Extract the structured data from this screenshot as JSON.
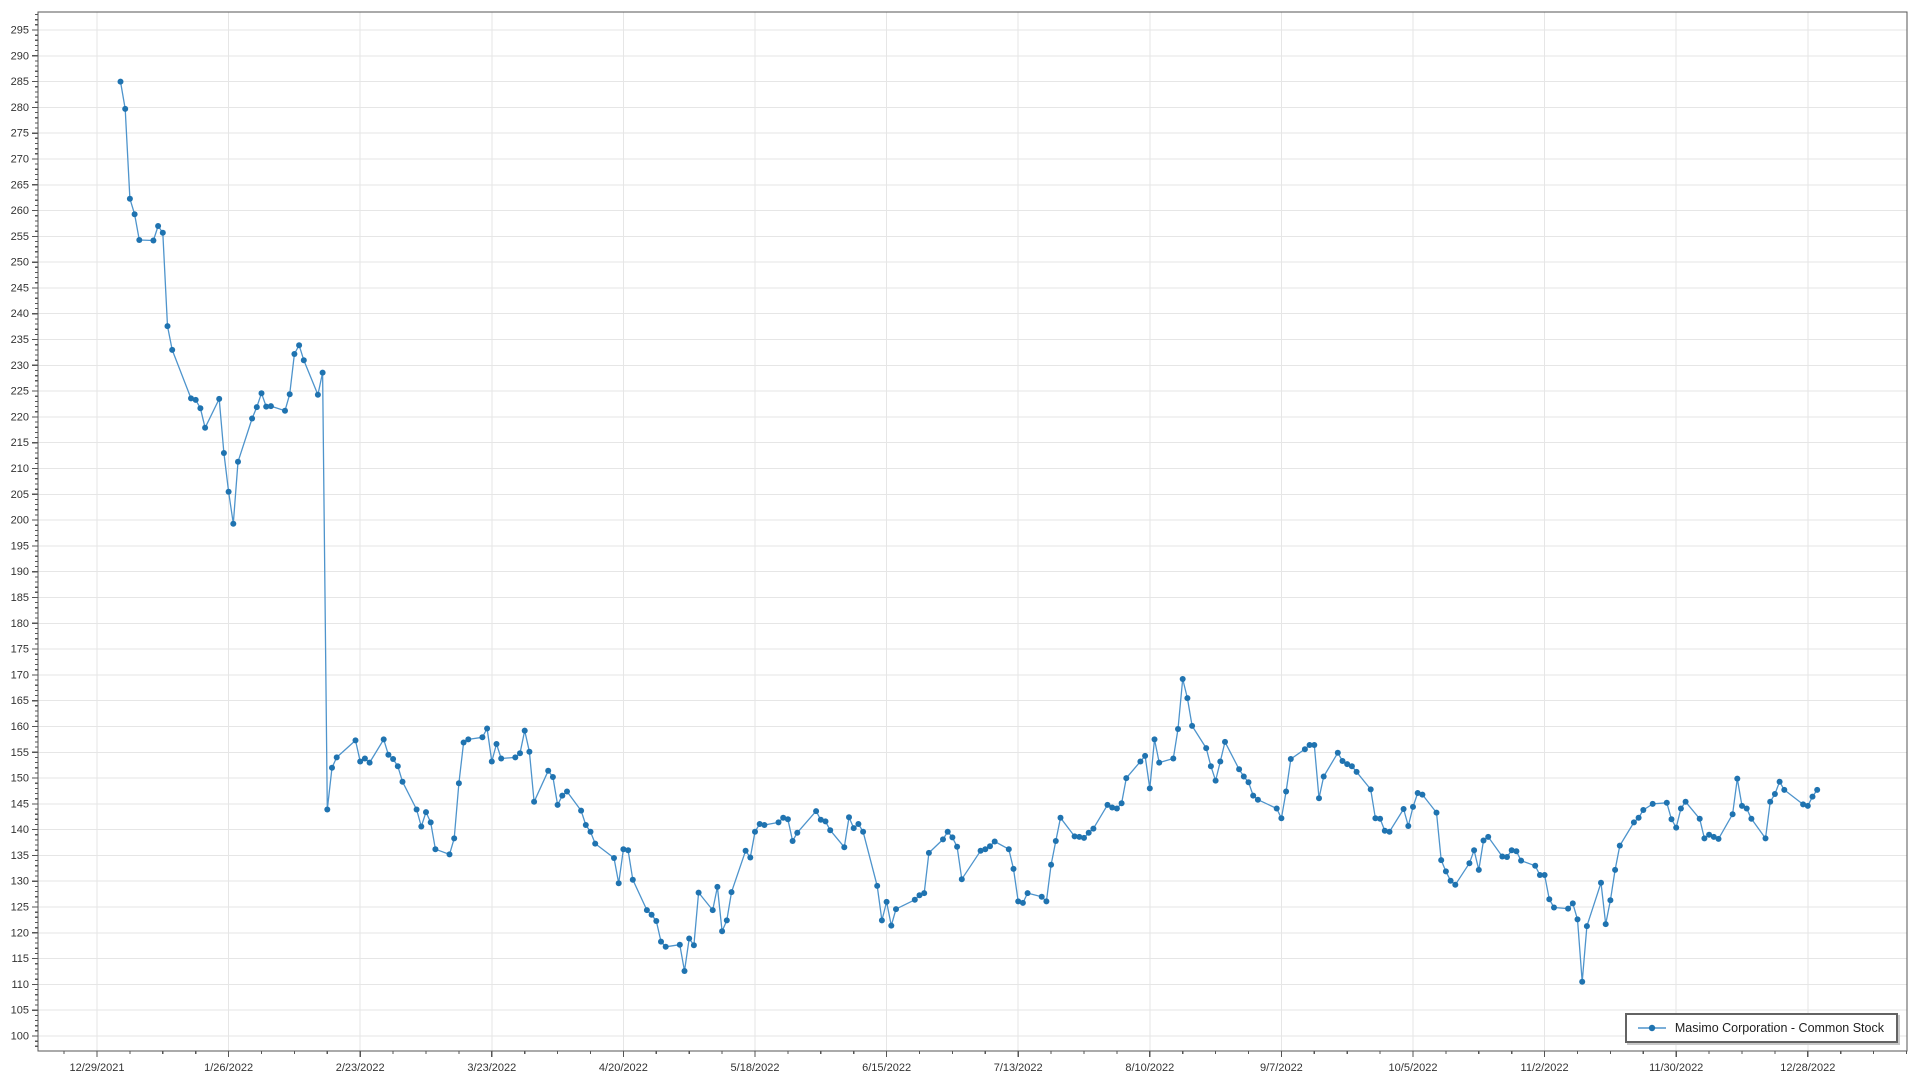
{
  "window": {
    "background": "#ffffff"
  },
  "legend": {
    "label": "Masimo Corporation - Common Stock"
  },
  "chart_data": {
    "type": "line",
    "title": "",
    "grid": true,
    "legend_position": "bottom-right",
    "colors": {
      "line": "#4e94cc",
      "marker": "#1f73b0",
      "grid": "#e6e6e6",
      "plot_border": "#555555",
      "tick": "#555555",
      "tick_text": "#333333",
      "legend_border": "#636363",
      "legend_bg": "#ffffff"
    },
    "y_axis": {
      "min": 100,
      "max": 295,
      "label_step": 5,
      "minor_step": 1,
      "ylim": [
        97,
        298
      ],
      "tick_labels": [
        "100",
        "105",
        "110",
        "115",
        "120",
        "125",
        "130",
        "135",
        "140",
        "145",
        "150",
        "155",
        "160",
        "165",
        "170",
        "175",
        "180",
        "185",
        "190",
        "195",
        "200",
        "205",
        "210",
        "215",
        "220",
        "225",
        "230",
        "235",
        "240",
        "245",
        "250",
        "255",
        "260",
        "265",
        "270",
        "275",
        "280",
        "285",
        "290",
        "295"
      ]
    },
    "x_axis": {
      "start_date": "12/29/2021",
      "label_every_days": 28,
      "minor_tick_days": 7,
      "tick_labels": [
        "12/29/2021",
        "1/26/2022",
        "2/23/2022",
        "3/23/2022",
        "4/20/2022",
        "5/18/2022",
        "6/15/2022",
        "7/13/2022",
        "8/10/2022",
        "9/7/2022",
        "10/5/2022",
        "11/2/2022",
        "11/30/2022",
        "12/28/2022"
      ]
    },
    "series": [
      {
        "name": "Masimo Corporation - Common Stock",
        "year": 2022,
        "points": [
          [
            "1/3",
            285.0
          ],
          [
            "1/4",
            279.7
          ],
          [
            "1/5",
            262.3
          ],
          [
            "1/6",
            259.3
          ],
          [
            "1/7",
            254.3
          ],
          [
            "1/10",
            254.2
          ],
          [
            "1/11",
            257.0
          ],
          [
            "1/12",
            255.7
          ],
          [
            "1/13",
            237.6
          ],
          [
            "1/14",
            233.0
          ],
          [
            "1/18",
            223.6
          ],
          [
            "1/19",
            223.3
          ],
          [
            "1/20",
            221.7
          ],
          [
            "1/21",
            217.9
          ],
          [
            "1/24",
            223.5
          ],
          [
            "1/25",
            213.0
          ],
          [
            "1/26",
            205.5
          ],
          [
            "1/27",
            199.3
          ],
          [
            "1/28",
            211.3
          ],
          [
            "1/31",
            219.7
          ],
          [
            "2/1",
            221.9
          ],
          [
            "2/2",
            224.6
          ],
          [
            "2/3",
            222.0
          ],
          [
            "2/4",
            222.1
          ],
          [
            "2/7",
            221.2
          ],
          [
            "2/8",
            224.4
          ],
          [
            "2/9",
            232.2
          ],
          [
            "2/10",
            233.9
          ],
          [
            "2/11",
            231.0
          ],
          [
            "2/14",
            224.3
          ],
          [
            "2/15",
            228.6
          ],
          [
            "2/16",
            143.9
          ],
          [
            "2/17",
            152.0
          ],
          [
            "2/18",
            154.0
          ],
          [
            "2/22",
            157.3
          ],
          [
            "2/23",
            153.2
          ],
          [
            "2/24",
            153.8
          ],
          [
            "2/25",
            153.0
          ],
          [
            "2/28",
            157.5
          ],
          [
            "3/1",
            154.5
          ],
          [
            "3/2",
            153.7
          ],
          [
            "3/3",
            152.3
          ],
          [
            "3/4",
            149.3
          ],
          [
            "3/7",
            143.9
          ],
          [
            "3/8",
            140.6
          ],
          [
            "3/9",
            143.4
          ],
          [
            "3/10",
            141.4
          ],
          [
            "3/11",
            136.2
          ],
          [
            "3/14",
            135.2
          ],
          [
            "3/15",
            138.3
          ],
          [
            "3/16",
            149.0
          ],
          [
            "3/17",
            156.9
          ],
          [
            "3/18",
            157.5
          ],
          [
            "3/21",
            157.9
          ],
          [
            "3/22",
            159.6
          ],
          [
            "3/23",
            153.2
          ],
          [
            "3/24",
            156.6
          ],
          [
            "3/25",
            153.8
          ],
          [
            "3/28",
            154.0
          ],
          [
            "3/29",
            154.8
          ],
          [
            "3/30",
            159.2
          ],
          [
            "3/31",
            155.1
          ],
          [
            "4/1",
            145.4
          ],
          [
            "4/4",
            151.4
          ],
          [
            "4/5",
            150.2
          ],
          [
            "4/6",
            144.8
          ],
          [
            "4/7",
            146.6
          ],
          [
            "4/8",
            147.4
          ],
          [
            "4/11",
            143.7
          ],
          [
            "4/12",
            140.9
          ],
          [
            "4/13",
            139.6
          ],
          [
            "4/14",
            137.3
          ],
          [
            "4/18",
            134.5
          ],
          [
            "4/19",
            129.6
          ],
          [
            "4/20",
            136.2
          ],
          [
            "4/21",
            136.0
          ],
          [
            "4/22",
            130.3
          ],
          [
            "4/25",
            124.4
          ],
          [
            "4/26",
            123.5
          ],
          [
            "4/27",
            122.3
          ],
          [
            "4/28",
            118.3
          ],
          [
            "4/29",
            117.3
          ],
          [
            "5/2",
            117.7
          ],
          [
            "5/3",
            112.6
          ],
          [
            "5/4",
            118.9
          ],
          [
            "5/5",
            117.6
          ],
          [
            "5/6",
            127.8
          ],
          [
            "5/9",
            124.4
          ],
          [
            "5/10",
            128.9
          ],
          [
            "5/11",
            120.3
          ],
          [
            "5/12",
            122.4
          ],
          [
            "5/13",
            127.9
          ],
          [
            "5/16",
            135.9
          ],
          [
            "5/17",
            134.6
          ],
          [
            "5/18",
            139.6
          ],
          [
            "5/19",
            141.1
          ],
          [
            "5/20",
            140.9
          ],
          [
            "5/23",
            141.4
          ],
          [
            "5/24",
            142.3
          ],
          [
            "5/25",
            142.0
          ],
          [
            "5/26",
            137.8
          ],
          [
            "5/27",
            139.4
          ],
          [
            "5/31",
            143.6
          ],
          [
            "6/1",
            141.9
          ],
          [
            "6/2",
            141.6
          ],
          [
            "6/3",
            139.9
          ],
          [
            "6/6",
            136.6
          ],
          [
            "6/7",
            142.4
          ],
          [
            "6/8",
            140.3
          ],
          [
            "6/9",
            141.1
          ],
          [
            "6/10",
            139.6
          ],
          [
            "6/13",
            129.1
          ],
          [
            "6/14",
            122.4
          ],
          [
            "6/15",
            126.0
          ],
          [
            "6/16",
            121.4
          ],
          [
            "6/17",
            124.6
          ],
          [
            "6/21",
            126.4
          ],
          [
            "6/22",
            127.3
          ],
          [
            "6/23",
            127.7
          ],
          [
            "6/24",
            135.5
          ],
          [
            "6/27",
            138.1
          ],
          [
            "6/28",
            139.6
          ],
          [
            "6/29",
            138.5
          ],
          [
            "6/30",
            136.7
          ],
          [
            "7/1",
            130.4
          ],
          [
            "7/5",
            135.9
          ],
          [
            "7/6",
            136.2
          ],
          [
            "7/7",
            136.8
          ],
          [
            "7/8",
            137.7
          ],
          [
            "7/11",
            136.2
          ],
          [
            "7/12",
            132.4
          ],
          [
            "7/13",
            126.1
          ],
          [
            "7/14",
            125.8
          ],
          [
            "7/15",
            127.7
          ],
          [
            "7/18",
            127.0
          ],
          [
            "7/19",
            126.1
          ],
          [
            "7/20",
            133.2
          ],
          [
            "7/21",
            137.8
          ],
          [
            "7/22",
            142.3
          ],
          [
            "7/25",
            138.7
          ],
          [
            "7/26",
            138.6
          ],
          [
            "7/27",
            138.4
          ],
          [
            "7/28",
            139.4
          ],
          [
            "7/29",
            140.2
          ],
          [
            "8/1",
            144.8
          ],
          [
            "8/2",
            144.3
          ],
          [
            "8/3",
            144.1
          ],
          [
            "8/4",
            145.1
          ],
          [
            "8/5",
            150.0
          ],
          [
            "8/8",
            153.2
          ],
          [
            "8/9",
            154.3
          ],
          [
            "8/10",
            148.0
          ],
          [
            "8/11",
            157.5
          ],
          [
            "8/12",
            153.0
          ],
          [
            "8/15",
            153.8
          ],
          [
            "8/16",
            159.5
          ],
          [
            "8/17",
            169.2
          ],
          [
            "8/18",
            165.5
          ],
          [
            "8/19",
            160.1
          ],
          [
            "8/22",
            155.8
          ],
          [
            "8/23",
            152.3
          ],
          [
            "8/24",
            149.5
          ],
          [
            "8/25",
            153.2
          ],
          [
            "8/26",
            157.0
          ],
          [
            "8/29",
            151.7
          ],
          [
            "8/30",
            150.3
          ],
          [
            "8/31",
            149.2
          ],
          [
            "9/1",
            146.6
          ],
          [
            "9/2",
            145.8
          ],
          [
            "9/6",
            144.1
          ],
          [
            "9/7",
            142.2
          ],
          [
            "9/8",
            147.4
          ],
          [
            "9/9",
            153.7
          ],
          [
            "9/12",
            155.6
          ],
          [
            "9/13",
            156.4
          ],
          [
            "9/14",
            156.4
          ],
          [
            "9/15",
            146.1
          ],
          [
            "9/16",
            150.3
          ],
          [
            "9/19",
            154.9
          ],
          [
            "9/20",
            153.3
          ],
          [
            "9/21",
            152.7
          ],
          [
            "9/22",
            152.3
          ],
          [
            "9/23",
            151.2
          ],
          [
            "9/26",
            147.8
          ],
          [
            "9/27",
            142.2
          ],
          [
            "9/28",
            142.1
          ],
          [
            "9/29",
            139.8
          ],
          [
            "9/30",
            139.6
          ],
          [
            "10/3",
            144.0
          ],
          [
            "10/4",
            140.7
          ],
          [
            "10/5",
            144.4
          ],
          [
            "10/6",
            147.1
          ],
          [
            "10/7",
            146.8
          ],
          [
            "10/10",
            143.3
          ],
          [
            "10/11",
            134.1
          ],
          [
            "10/12",
            131.9
          ],
          [
            "10/13",
            130.1
          ],
          [
            "10/14",
            129.3
          ],
          [
            "10/17",
            133.5
          ],
          [
            "10/18",
            136.0
          ],
          [
            "10/19",
            132.2
          ],
          [
            "10/20",
            137.9
          ],
          [
            "10/21",
            138.6
          ],
          [
            "10/24",
            134.8
          ],
          [
            "10/25",
            134.7
          ],
          [
            "10/26",
            136.0
          ],
          [
            "10/27",
            135.8
          ],
          [
            "10/28",
            134.0
          ],
          [
            "10/31",
            133.0
          ],
          [
            "11/1",
            131.2
          ],
          [
            "11/2",
            131.2
          ],
          [
            "11/3",
            126.5
          ],
          [
            "11/4",
            124.9
          ],
          [
            "11/7",
            124.7
          ],
          [
            "11/8",
            125.7
          ],
          [
            "11/9",
            122.6
          ],
          [
            "11/10",
            110.5
          ],
          [
            "11/11",
            121.3
          ],
          [
            "11/14",
            129.7
          ],
          [
            "11/15",
            121.7
          ],
          [
            "11/16",
            126.3
          ],
          [
            "11/17",
            132.2
          ],
          [
            "11/18",
            136.9
          ],
          [
            "11/21",
            141.4
          ],
          [
            "11/22",
            142.3
          ],
          [
            "11/23",
            143.8
          ],
          [
            "11/25",
            145.0
          ],
          [
            "11/28",
            145.2
          ],
          [
            "11/29",
            142.0
          ],
          [
            "11/30",
            140.4
          ],
          [
            "12/1",
            144.1
          ],
          [
            "12/2",
            145.4
          ],
          [
            "12/5",
            142.1
          ],
          [
            "12/6",
            138.3
          ],
          [
            "12/7",
            139.0
          ],
          [
            "12/8",
            138.6
          ],
          [
            "12/9",
            138.2
          ],
          [
            "12/12",
            143.0
          ],
          [
            "12/13",
            149.9
          ],
          [
            "12/14",
            144.6
          ],
          [
            "12/15",
            144.1
          ],
          [
            "12/16",
            142.1
          ],
          [
            "12/19",
            138.3
          ],
          [
            "12/20",
            145.4
          ],
          [
            "12/21",
            146.9
          ],
          [
            "12/22",
            149.3
          ],
          [
            "12/23",
            147.7
          ],
          [
            "12/27",
            144.9
          ],
          [
            "12/28",
            144.6
          ],
          [
            "12/29",
            146.4
          ],
          [
            "12/30",
            147.7
          ]
        ]
      }
    ]
  }
}
